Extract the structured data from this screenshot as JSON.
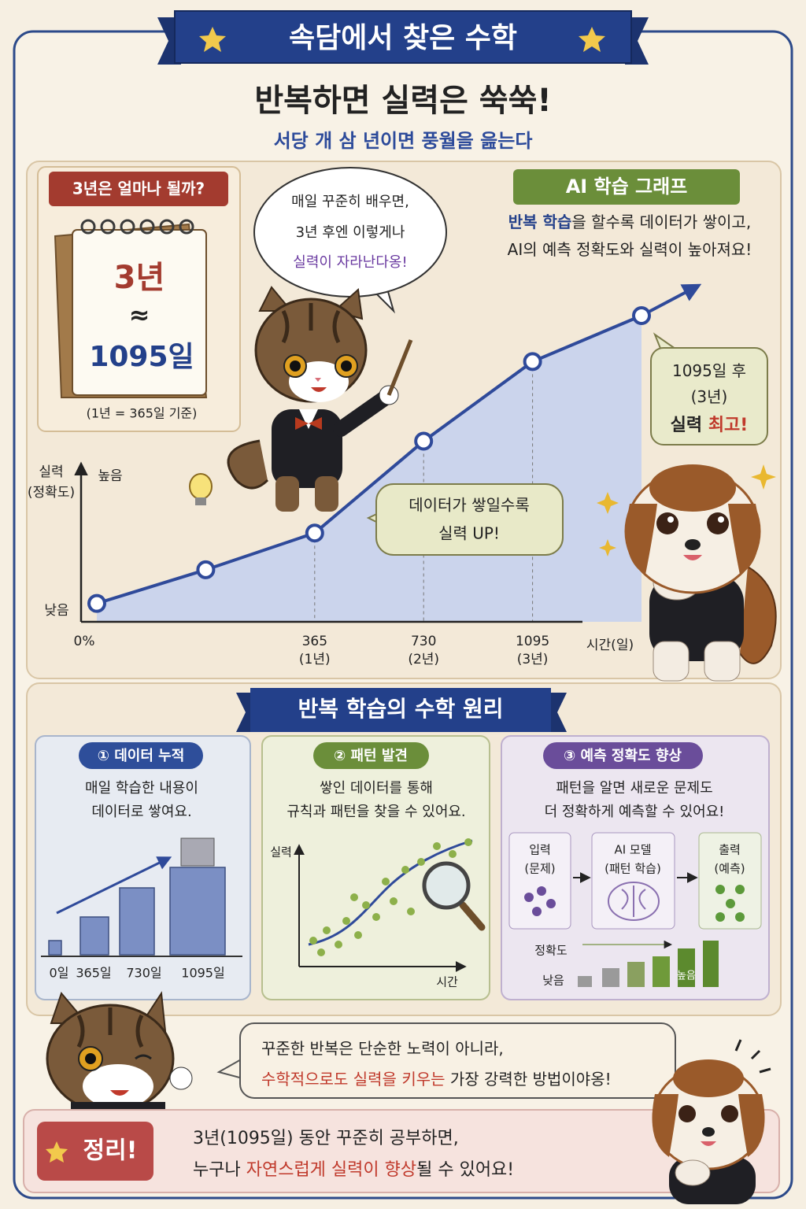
{
  "banner": "속담에서 찾은 수학",
  "title": "반복하면 실력은 쑥쑥!",
  "subtitle": "서당 개 삼 년이면 풍월을 읊는다",
  "calendar": {
    "tag": "3년은 얼마나 될까?",
    "years": "3년",
    "approx": "≈",
    "days": "1095일",
    "note": "(1년 = 365일 기준)"
  },
  "cat_speech": [
    "매일 꾸준히 배우면,",
    "3년 후엔 이렇게나",
    "실력이 자라난다옹!"
  ],
  "ai_graph": {
    "label": "AI 학습 그래프",
    "desc": [
      [
        "반복 학습",
        "을 할수록 데이터가 쌓이고,"
      ],
      [
        "AI의 예측 정확도와 실력이 높아져요!"
      ]
    ]
  },
  "chart_data": {
    "type": "area",
    "y_label": [
      "실력",
      "(정확도)"
    ],
    "y_high": "높음",
    "y_low": "낮음",
    "x_label": "시간(일)",
    "categories": [
      "0%",
      null,
      "365",
      "730",
      "1095",
      null
    ],
    "category_notes": [
      null,
      null,
      "(1년)",
      "(2년)",
      "(3년)",
      null
    ],
    "values": [
      6,
      17,
      29,
      59,
      85,
      100
    ],
    "ylim": [
      0,
      100
    ],
    "color": "#2f4a9a",
    "fill": "#c6d1ee"
  },
  "bubble_mid": [
    "데이터가 쌓일수록",
    "실력 UP!"
  ],
  "bubble_top": [
    [
      "1095일 후"
    ],
    [
      "(3년)"
    ],
    [
      "실력 ",
      "최고!"
    ]
  ],
  "section_title": "반복 학습의 수학 원리",
  "cards": [
    {
      "tag": "① 데이터 누적",
      "desc": [
        "매일 학습한 내용이",
        "데이터로 쌓여요."
      ],
      "labels": [
        "0일",
        "365일",
        "730일",
        "1095일"
      ]
    },
    {
      "tag": "② 패턴 발견",
      "desc": [
        "쌓인 데이터를 통해",
        "규칙과 패턴을 찾을 수 있어요."
      ],
      "labels": [
        "실력",
        "시간"
      ]
    },
    {
      "tag": "③ 예측 정확도 향상",
      "desc": [
        "패턴을 알면 새로운 문제도",
        "더 정확하게 예측할 수 있어요!"
      ],
      "boxes": [
        [
          "입력",
          "(문제)"
        ],
        [
          "AI 모델",
          "(패턴 학습)"
        ],
        [
          "출력",
          "(예측)"
        ]
      ],
      "labels": [
        "정확도",
        "낮음",
        "높음"
      ]
    }
  ],
  "cat_bubble": [
    [
      "꾸준한 반복은 단순한 노력이 아니라,"
    ],
    [
      "수학적으로도 실력을 키우는",
      " 가장 강력한 방법이야옹!"
    ]
  ],
  "summary": {
    "badge": "정리!",
    "lines": [
      [
        "3년(1095일) 동안 꾸준히 공부하면,"
      ],
      [
        "누구나 ",
        "자연스럽게 실력이 향상",
        "될 수 있어요!"
      ]
    ]
  }
}
